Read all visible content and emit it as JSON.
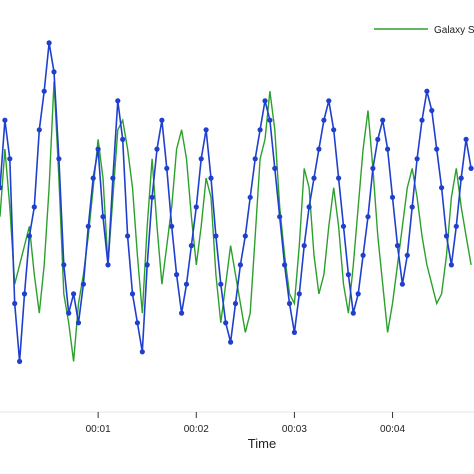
{
  "chart_data": {
    "type": "line",
    "title": "",
    "xlabel": "Time",
    "ylabel": "",
    "xlim": [
      0.0,
      4.83
    ],
    "ylim": [
      -2.0,
      2.0
    ],
    "grid": false,
    "legend_position": "top-right",
    "x_ticks": [
      {
        "value": 1.0,
        "label": "00:01"
      },
      {
        "value": 2.0,
        "label": "00:02"
      },
      {
        "value": 3.0,
        "label": "00:03"
      },
      {
        "value": 4.0,
        "label": "00:04"
      }
    ],
    "series": [
      {
        "name": "Galaxy S",
        "color": "#2ca02c",
        "x": [
          0.0,
          0.05,
          0.1,
          0.15,
          0.2,
          0.25,
          0.3,
          0.35,
          0.4,
          0.45,
          0.5,
          0.55,
          0.6,
          0.65,
          0.7,
          0.75,
          0.8,
          0.85,
          0.9,
          0.95,
          1.0,
          1.05,
          1.1,
          1.15,
          1.2,
          1.25,
          1.3,
          1.35,
          1.4,
          1.45,
          1.5,
          1.55,
          1.6,
          1.65,
          1.7,
          1.75,
          1.8,
          1.85,
          1.9,
          1.95,
          2.0,
          2.05,
          2.1,
          2.15,
          2.2,
          2.25,
          2.3,
          2.35,
          2.4,
          2.45,
          2.5,
          2.55,
          2.6,
          2.65,
          2.7,
          2.75,
          2.8,
          2.85,
          2.9,
          2.95,
          3.0,
          3.05,
          3.1,
          3.15,
          3.2,
          3.25,
          3.3,
          3.35,
          3.4,
          3.45,
          3.5,
          3.55,
          3.6,
          3.65,
          3.7,
          3.75,
          3.8,
          3.85,
          3.9,
          3.95,
          4.0,
          4.05,
          4.1,
          4.15,
          4.2,
          4.25,
          4.3,
          4.35,
          4.4,
          4.45,
          4.5,
          4.55,
          4.6,
          4.65,
          4.7,
          4.75,
          4.8
        ],
        "y": [
          -0.1,
          0.6,
          0.0,
          -0.8,
          -0.6,
          -0.4,
          -0.2,
          -0.7,
          -1.1,
          -0.6,
          0.2,
          1.3,
          0.3,
          -0.9,
          -1.2,
          -1.6,
          -1.0,
          -0.7,
          -0.3,
          0.2,
          0.7,
          0.3,
          -0.6,
          0.1,
          0.8,
          0.9,
          0.6,
          0.2,
          -0.5,
          -1.1,
          -0.2,
          0.5,
          -0.2,
          -0.8,
          -0.4,
          0.0,
          0.6,
          0.8,
          0.5,
          -0.1,
          -0.6,
          -0.2,
          0.3,
          0.1,
          -0.7,
          -1.2,
          -0.8,
          -0.4,
          -0.7,
          -1.0,
          -1.3,
          -1.1,
          -0.3,
          0.5,
          0.7,
          1.2,
          0.8,
          0.0,
          -0.5,
          -0.9,
          -1.0,
          -0.4,
          0.4,
          0.2,
          -0.5,
          -0.9,
          -0.7,
          -0.2,
          0.2,
          -0.2,
          -0.8,
          -1.1,
          -0.6,
          0.0,
          0.6,
          1.0,
          0.4,
          -0.3,
          -0.8,
          -1.3,
          -1.0,
          -0.6,
          -0.2,
          0.2,
          0.4,
          0.1,
          -0.3,
          -0.6,
          -0.8,
          -1.0,
          -0.9,
          -0.5,
          0.1,
          0.4,
          0.0,
          -0.3,
          -0.6
        ]
      },
      {
        "name": "",
        "color": "#1f3fcf",
        "x": [
          0.0,
          0.05,
          0.1,
          0.15,
          0.2,
          0.25,
          0.3,
          0.35,
          0.4,
          0.45,
          0.5,
          0.55,
          0.6,
          0.65,
          0.7,
          0.75,
          0.8,
          0.85,
          0.9,
          0.95,
          1.0,
          1.05,
          1.1,
          1.15,
          1.2,
          1.25,
          1.3,
          1.35,
          1.4,
          1.45,
          1.5,
          1.55,
          1.6,
          1.65,
          1.7,
          1.75,
          1.8,
          1.85,
          1.9,
          1.95,
          2.0,
          2.05,
          2.1,
          2.15,
          2.2,
          2.25,
          2.3,
          2.35,
          2.4,
          2.45,
          2.5,
          2.55,
          2.6,
          2.65,
          2.7,
          2.75,
          2.8,
          2.85,
          2.9,
          2.95,
          3.0,
          3.05,
          3.1,
          3.15,
          3.2,
          3.25,
          3.3,
          3.35,
          3.4,
          3.45,
          3.5,
          3.55,
          3.6,
          3.65,
          3.7,
          3.75,
          3.8,
          3.85,
          3.9,
          3.95,
          4.0,
          4.05,
          4.1,
          4.15,
          4.2,
          4.25,
          4.3,
          4.35,
          4.4,
          4.45,
          4.5,
          4.55,
          4.6,
          4.65,
          4.7,
          4.75,
          4.8
        ],
        "y": [
          0.2,
          0.9,
          0.5,
          -1.0,
          -1.6,
          -0.9,
          -0.3,
          0.0,
          0.8,
          1.2,
          1.7,
          1.4,
          0.5,
          -0.6,
          -1.1,
          -0.9,
          -1.2,
          -0.8,
          -0.2,
          0.3,
          0.6,
          -0.1,
          -0.6,
          0.3,
          1.1,
          0.7,
          -0.3,
          -0.9,
          -1.2,
          -1.5,
          -0.6,
          0.1,
          0.6,
          0.9,
          0.4,
          -0.2,
          -0.7,
          -1.1,
          -0.8,
          -0.4,
          0.0,
          0.5,
          0.8,
          0.3,
          -0.3,
          -0.8,
          -1.2,
          -1.4,
          -1.0,
          -0.6,
          -0.3,
          0.1,
          0.5,
          0.8,
          1.1,
          0.9,
          0.4,
          -0.1,
          -0.6,
          -1.0,
          -1.3,
          -0.9,
          -0.4,
          0.0,
          0.3,
          0.6,
          0.9,
          1.1,
          0.8,
          0.3,
          -0.2,
          -0.7,
          -1.1,
          -0.9,
          -0.5,
          -0.1,
          0.4,
          0.7,
          0.9,
          0.6,
          0.1,
          -0.4,
          -0.8,
          -0.5,
          0.0,
          0.5,
          0.9,
          1.2,
          1.0,
          0.6,
          0.2,
          -0.3,
          -0.6,
          -0.2,
          0.3,
          0.7,
          0.4
        ]
      }
    ]
  }
}
